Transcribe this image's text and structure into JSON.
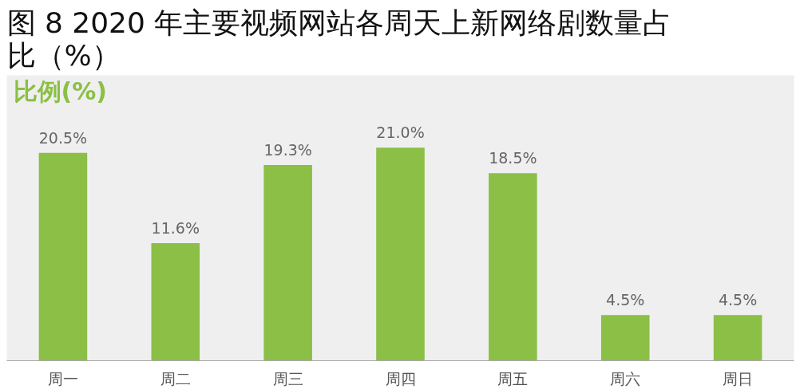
{
  "chart_data": {
    "type": "bar",
    "title": "图 8 2020 年主要视频网站各周天上新网络剧数量占比（%）",
    "ylabel": "比例(%)",
    "categories": [
      "周一",
      "周二",
      "周三",
      "周四",
      "周五",
      "周六",
      "周日"
    ],
    "values": [
      20.5,
      11.6,
      19.3,
      21.0,
      18.5,
      4.5,
      4.5
    ],
    "value_labels": [
      "20.5%",
      "11.6%",
      "19.3%",
      "21.0%",
      "18.5%",
      "4.5%",
      "4.5%"
    ],
    "color": "#8bbf45",
    "grid": false
  }
}
